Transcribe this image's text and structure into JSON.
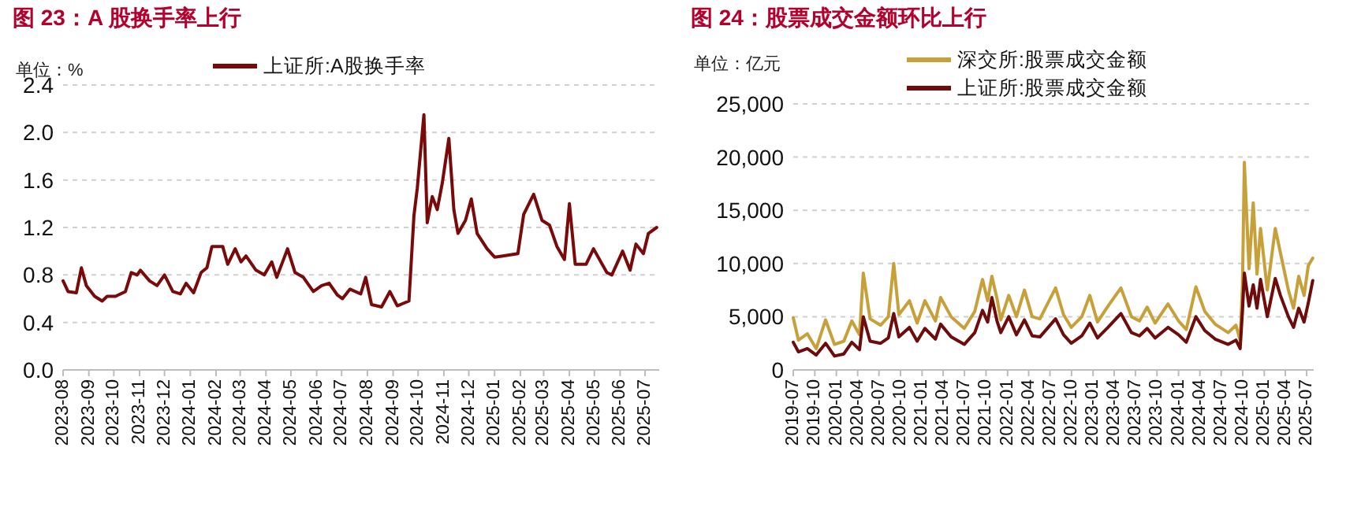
{
  "chart_data": [
    {
      "type": "line",
      "title": "图 23：A 股换手率上行",
      "annotations": [
        "单位：%"
      ],
      "legend": "top",
      "grid": "y",
      "x": [
        "2023-08-01",
        "2023-08-07",
        "2023-08-17",
        "2023-08-23",
        "2023-08-29",
        "2023-09-08",
        "2023-09-17",
        "2023-09-23",
        "2023-10-03",
        "2023-10-15",
        "2023-10-22",
        "2023-10-29",
        "2023-11-02",
        "2023-11-13",
        "2023-11-22",
        "2023-12-01",
        "2023-12-11",
        "2023-12-20",
        "2023-12-27",
        "2024-01-05",
        "2024-01-14",
        "2024-01-21",
        "2024-01-27",
        "2024-02-09",
        "2024-02-15",
        "2024-02-24",
        "2024-03-02",
        "2024-03-08",
        "2024-03-20",
        "2024-03-30",
        "2024-04-08",
        "2024-04-14",
        "2024-04-27",
        "2024-05-06",
        "2024-05-16",
        "2024-05-28",
        "2024-06-07",
        "2024-06-16",
        "2024-06-26",
        "2024-07-02",
        "2024-07-11",
        "2024-07-24",
        "2024-07-30",
        "2024-08-06",
        "2024-08-18",
        "2024-08-28",
        "2024-09-06",
        "2024-09-20",
        "2024-09-26",
        "2024-09-30",
        "2024-10-08",
        "2024-10-12",
        "2024-10-18",
        "2024-10-24",
        "2024-10-30",
        "2024-11-07",
        "2024-11-13",
        "2024-11-18",
        "2024-11-27",
        "2024-12-04",
        "2024-12-11",
        "2024-12-23",
        "2025-01-01",
        "2025-01-11",
        "2025-01-29",
        "2025-02-05",
        "2025-02-17",
        "2025-02-27",
        "2025-03-08",
        "2025-03-17",
        "2025-03-26",
        "2025-04-01",
        "2025-04-08",
        "2025-04-21",
        "2025-04-30",
        "2025-05-16",
        "2025-05-22",
        "2025-06-04",
        "2025-06-13",
        "2025-06-20",
        "2025-06-29",
        "2025-07-05",
        "2025-07-15"
      ],
      "series": [
        {
          "name": "上证所:A股换手率",
          "color": "#7a0a0a",
          "values": [
            0.75,
            0.66,
            0.65,
            0.86,
            0.71,
            0.62,
            0.58,
            0.62,
            0.62,
            0.66,
            0.82,
            0.8,
            0.84,
            0.75,
            0.71,
            0.8,
            0.66,
            0.64,
            0.73,
            0.65,
            0.82,
            0.86,
            1.04,
            1.04,
            0.89,
            1.02,
            0.91,
            0.96,
            0.84,
            0.8,
            0.91,
            0.78,
            1.02,
            0.82,
            0.78,
            0.66,
            0.71,
            0.73,
            0.63,
            0.6,
            0.68,
            0.64,
            0.78,
            0.55,
            0.53,
            0.66,
            0.54,
            0.58,
            1.3,
            1.53,
            2.15,
            1.24,
            1.46,
            1.35,
            1.57,
            1.95,
            1.35,
            1.15,
            1.26,
            1.44,
            1.15,
            1.02,
            0.95,
            0.96,
            0.98,
            1.31,
            1.48,
            1.26,
            1.22,
            1.04,
            0.93,
            1.4,
            0.89,
            0.89,
            1.02,
            0.82,
            0.8,
            1.0,
            0.84,
            1.06,
            0.98,
            1.15,
            1.2
          ]
        }
      ],
      "xlim": [
        "2023-08-01",
        "2025-07-18"
      ],
      "xticks": [
        "2023-08",
        "2023-09",
        "2023-10",
        "2023-11",
        "2023-12",
        "2024-01",
        "2024-02",
        "2024-03",
        "2024-04",
        "2024-05",
        "2024-06",
        "2024-07",
        "2024-08",
        "2024-09",
        "2024-10",
        "2024-11",
        "2024-12",
        "2025-01",
        "2025-02",
        "2025-03",
        "2025-04",
        "2025-05",
        "2025-06",
        "2025-07"
      ],
      "ylim": [
        0,
        2.4
      ],
      "yticks": [
        {
          "value": 0,
          "label": "0.0"
        },
        {
          "value": 0.4,
          "label": "0.4"
        },
        {
          "value": 0.8,
          "label": "0.8"
        },
        {
          "value": 1.2,
          "label": "1.2"
        },
        {
          "value": 1.6,
          "label": "1.6"
        },
        {
          "value": 2.0,
          "label": "2.0"
        },
        {
          "value": 2.4,
          "label": "2.4"
        }
      ]
    },
    {
      "type": "line",
      "title": "图 24：股票成交金额环比上行",
      "annotations": [
        "单位：亿元"
      ],
      "legend": "top",
      "grid": "y",
      "x": [
        "2019-07-01",
        "2019-07-23",
        "2019-08-30",
        "2019-10-07",
        "2019-11-16",
        "2019-12-24",
        "2020-02-02",
        "2020-03-07",
        "2020-04-09",
        "2020-04-25",
        "2020-05-24",
        "2020-07-08",
        "2020-08-10",
        "2020-09-02",
        "2020-09-24",
        "2020-11-08",
        "2020-12-11",
        "2021-01-13",
        "2021-02-27",
        "2021-03-21",
        "2021-05-05",
        "2021-06-30",
        "2021-08-14",
        "2021-09-16",
        "2021-10-08",
        "2021-10-26",
        "2021-11-17",
        "2021-12-03",
        "2022-01-06",
        "2022-02-08",
        "2022-03-14",
        "2022-04-16",
        "2022-05-19",
        "2022-07-25",
        "2022-08-28",
        "2022-09-30",
        "2022-11-14",
        "2022-12-18",
        "2023-01-20",
        "2023-03-06",
        "2023-04-30",
        "2023-06-14",
        "2023-07-18",
        "2023-08-20",
        "2023-09-23",
        "2023-11-17",
        "2024-01-01",
        "2024-02-03",
        "2024-03-15",
        "2024-04-22",
        "2024-06-05",
        "2024-07-31",
        "2024-09-02",
        "2024-09-20",
        "2024-09-30",
        "2024-10-08",
        "2024-10-28",
        "2024-11-15",
        "2024-12-01",
        "2024-12-16",
        "2025-01-14",
        "2025-02-17",
        "2025-03-11",
        "2025-04-14",
        "2025-05-06",
        "2025-05-28",
        "2025-06-20",
        "2025-07-08",
        "2025-07-27"
      ],
      "series": [
        {
          "name": "深交所:股票成交金额",
          "color": "#c8a03a",
          "values": [
            4900,
            2800,
            3400,
            2000,
            4700,
            2400,
            2700,
            4600,
            3300,
            9100,
            4800,
            4200,
            5000,
            10000,
            5200,
            6500,
            4400,
            6500,
            4600,
            6800,
            5000,
            3900,
            5500,
            8500,
            6500,
            8800,
            6700,
            4700,
            7000,
            5000,
            7500,
            5000,
            4800,
            7700,
            5200,
            4000,
            5000,
            7000,
            4500,
            6000,
            7700,
            5000,
            4600,
            5900,
            4400,
            6200,
            4600,
            3800,
            7800,
            5500,
            4300,
            3500,
            4200,
            2800,
            8000,
            19500,
            9500,
            15700,
            9000,
            13300,
            7500,
            13300,
            11000,
            7500,
            5800,
            8800,
            7000,
            9800,
            10500
          ]
        },
        {
          "name": "上证所:股票成交金额",
          "color": "#6e0b0b",
          "values": [
            2600,
            1700,
            2000,
            1400,
            2500,
            1300,
            1500,
            2600,
            1900,
            5000,
            2700,
            2500,
            3000,
            5300,
            3100,
            4000,
            2700,
            3900,
            2900,
            4300,
            3100,
            2400,
            3500,
            5600,
            4500,
            6800,
            4600,
            3500,
            5000,
            3300,
            4700,
            3200,
            3100,
            4800,
            3300,
            2500,
            3200,
            4400,
            3000,
            4000,
            5300,
            3500,
            3200,
            3900,
            3000,
            4000,
            3300,
            2600,
            5000,
            3700,
            2900,
            2400,
            2800,
            2000,
            5600,
            9100,
            6000,
            8000,
            5800,
            8500,
            5000,
            8600,
            7000,
            5000,
            4000,
            5800,
            4500,
            6300,
            8400
          ]
        }
      ],
      "xlim": [
        "2019-07-01",
        "2025-07-31"
      ],
      "xticks": [
        "2019-07",
        "2019-10",
        "2020-01",
        "2020-04",
        "2020-07",
        "2020-10",
        "2021-01",
        "2021-04",
        "2021-07",
        "2021-10",
        "2022-01",
        "2022-04",
        "2022-07",
        "2022-10",
        "2023-01",
        "2023-04",
        "2023-07",
        "2023-10",
        "2024-01",
        "2024-04",
        "2024-07",
        "2024-10",
        "2025-01",
        "2025-04",
        "2025-07"
      ],
      "ylim": [
        0,
        25000
      ],
      "yticks": [
        {
          "value": 0,
          "label": "0"
        },
        {
          "value": 5000,
          "label": "5,000"
        },
        {
          "value": 10000,
          "label": "10,000"
        },
        {
          "value": 15000,
          "label": "15,000"
        },
        {
          "value": 20000,
          "label": "20,000"
        },
        {
          "value": 25000,
          "label": "25,000"
        }
      ]
    }
  ]
}
